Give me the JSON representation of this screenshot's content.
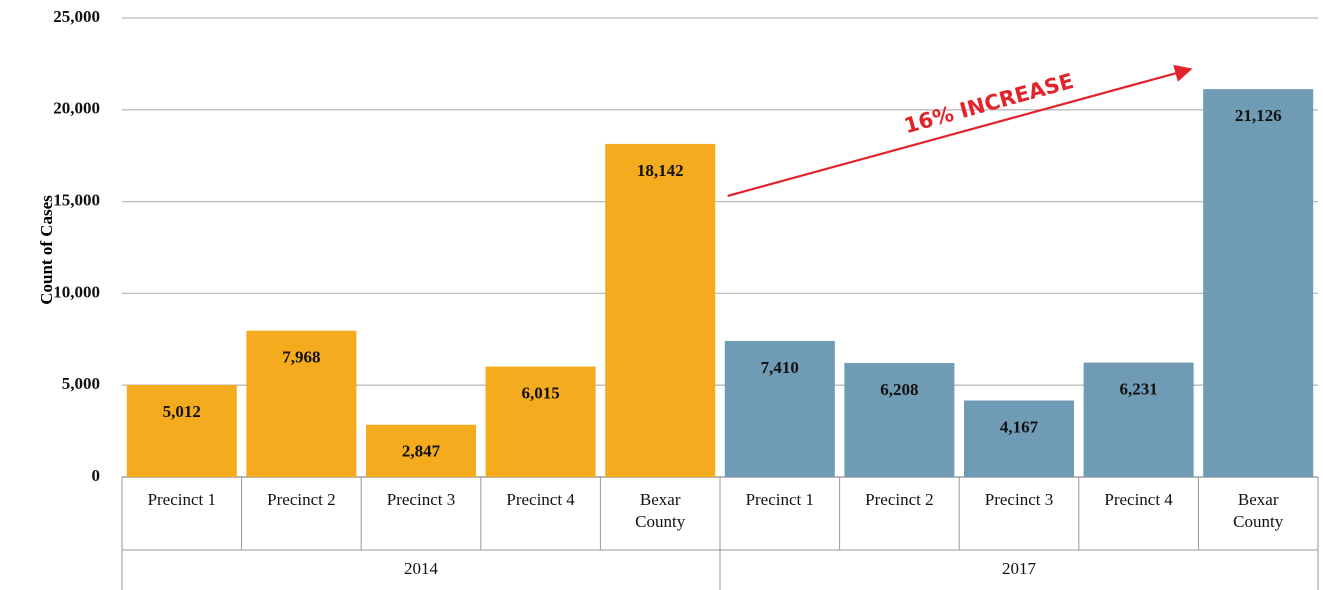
{
  "chart_data": {
    "type": "bar",
    "y_label": "Count of Cases",
    "annotation": "16% INCREASE",
    "categories": [
      "Precinct 1",
      "Precinct 2",
      "Precinct 3",
      "Precinct 4",
      "Bexar County"
    ],
    "series": [
      {
        "name": "2014",
        "color": "#f5ab1e",
        "values": [
          5012,
          7968,
          2847,
          6015,
          18142
        ],
        "value_labels": [
          "5,012",
          "7,968",
          "2,847",
          "6,015",
          "18,142"
        ]
      },
      {
        "name": "2017",
        "color": "#6f9bb5",
        "values": [
          7410,
          6208,
          4167,
          6231,
          21126
        ],
        "value_labels": [
          "7,410",
          "6,208",
          "4,167",
          "6,231",
          "21,126"
        ]
      }
    ],
    "ylim": [
      0,
      25000
    ],
    "yticks": [
      0,
      {
        "value": 5000,
        "label": "5,000"
      },
      {
        "value": 10000,
        "label": "10,000"
      },
      {
        "value": 15000,
        "label": "15,000"
      },
      {
        "value": 20000,
        "label": "20,000"
      },
      {
        "value": 25000,
        "label": "25,000"
      }
    ],
    "grid": true
  }
}
